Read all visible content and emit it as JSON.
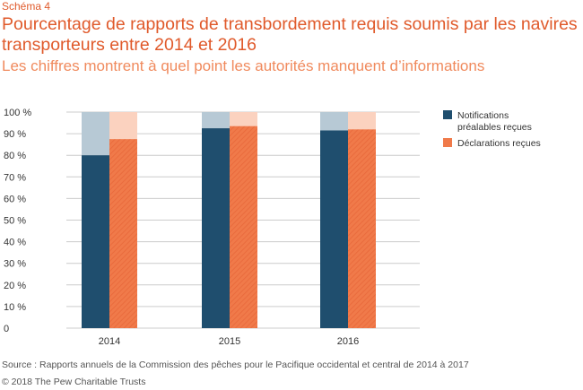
{
  "schema_label": "Schéma 4",
  "title": "Pourcentage de rapports de transbordement requis soumis par les navires transporteurs entre 2014 et 2016",
  "subtitle": "Les chiffres montrent à quel point les autorités manquent d’informations",
  "source": "Source : Rapports annuels de la Commission des pêches pour le Pacifique occidental et central de 2014 à 2017",
  "copyright": "© 2018 The Pew Charitable Trusts",
  "colors": {
    "notifications": "#1f4e6e",
    "notifications_light": "#b7c9d5",
    "declarations": "#f07a4a",
    "declarations_light": "#fbd2bf",
    "grid": "#cccccc",
    "axis_text": "#333333"
  },
  "chart_data": {
    "type": "bar",
    "categories": [
      "2014",
      "2015",
      "2016"
    ],
    "series": [
      {
        "name": "Notifications préalables reçues",
        "legend_lines": [
          "Notifications",
          "préalables reçues"
        ],
        "values": [
          80,
          92.5,
          91.5
        ]
      },
      {
        "name": "Déclarations reçues",
        "legend_lines": [
          "Déclarations reçues"
        ],
        "values": [
          87.5,
          93.5,
          92
        ]
      }
    ],
    "ylim": [
      0,
      100
    ],
    "yticks": [
      0,
      10,
      20,
      30,
      40,
      50,
      60,
      70,
      80,
      90,
      100
    ],
    "ytick_labels": [
      "0",
      "10 %",
      "20 %",
      "30 %",
      "40 %",
      "50 %",
      "60 %",
      "70 %",
      "80 %",
      "90 %",
      "100  %"
    ],
    "grid": true,
    "legend_position": "right",
    "xlabel": "",
    "ylabel": ""
  }
}
